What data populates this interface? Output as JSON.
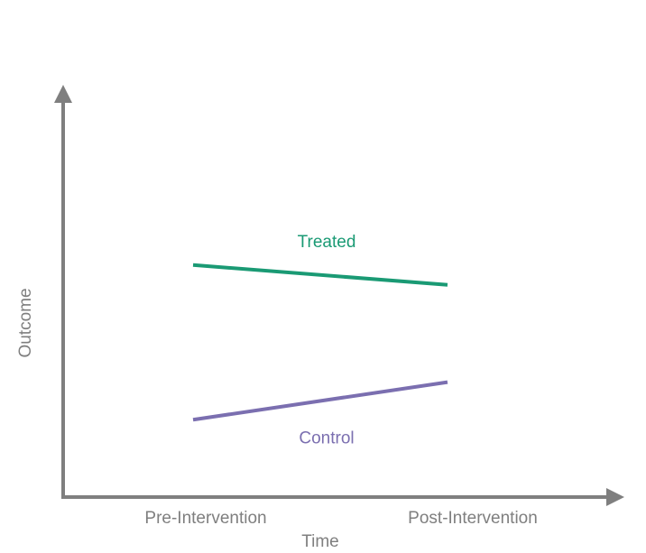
{
  "chart_data": {
    "type": "line",
    "title": "",
    "xlabel": "Time",
    "ylabel": "Outcome",
    "categories": [
      "Pre-Intervention",
      "Post-Intervention"
    ],
    "ylim": [
      0,
      10
    ],
    "grid": false,
    "legend": "inline labels",
    "axis_color": "#7f7f7f",
    "series": [
      {
        "name": "Treated",
        "color": "#1a9a74",
        "values": [
          5.25,
          4.8
        ]
      },
      {
        "name": "Control",
        "color": "#7b6fb0",
        "values": [
          1.75,
          2.6
        ]
      }
    ]
  }
}
